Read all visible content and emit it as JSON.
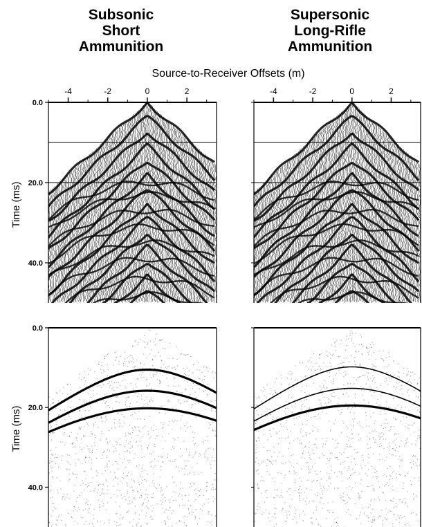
{
  "figure": {
    "titles": [
      [
        "Subsonic",
        "Short",
        "Ammunition"
      ],
      [
        "Supersonic",
        "Long-Rifle",
        "Ammunition"
      ]
    ],
    "offset_axis_label": "Source-to-Receiver Offsets (m)",
    "x_tick_labels": [
      "-4",
      "-2",
      "0",
      "2"
    ],
    "y_tick_labels": [
      "0.0",
      "20.0",
      "40.0"
    ],
    "time_axis_label": "Time (ms)",
    "colors": {
      "ink": "#000000",
      "paper": "#ffffff"
    }
  },
  "chart_data": [
    {
      "type": "scatter",
      "name_hint": "top-left seismogram",
      "xlim": [
        -5,
        3.5
      ],
      "ylim": [
        0,
        50
      ],
      "xticks": [
        -4,
        -2,
        0,
        2
      ],
      "yticks": [
        0,
        20,
        40
      ],
      "horizontal_reference_lines_ms": [
        10,
        20
      ],
      "first_arrival_slope_ms_per_m": 4.5
    },
    {
      "type": "scatter",
      "name_hint": "top-right seismogram",
      "xlim": [
        -5,
        3.5
      ],
      "ylim": [
        0,
        50
      ],
      "xticks": [
        -4,
        -2,
        0,
        2
      ],
      "yticks": [
        0,
        20,
        40
      ],
      "horizontal_reference_lines_ms": [
        10,
        20
      ],
      "first_arrival_slope_ms_per_m": 4.5
    },
    {
      "type": "line",
      "name_hint": "bottom-left hyperbolas",
      "xlim": [
        -5,
        3.5
      ],
      "ylim": [
        0,
        50
      ],
      "yticks": [
        0,
        20,
        40
      ],
      "series": [
        {
          "t0_ms": 10.5,
          "velocity_m_per_ms": 0.28,
          "line_weight": "heavy"
        },
        {
          "t0_ms": 15.8,
          "velocity_m_per_ms": 0.28,
          "line_weight": "heavy"
        },
        {
          "t0_ms": 20.2,
          "velocity_m_per_ms": 0.3,
          "line_weight": "heavy"
        }
      ]
    },
    {
      "type": "line",
      "name_hint": "bottom-right hyperbolas",
      "xlim": [
        -5,
        3.5
      ],
      "ylim": [
        0,
        50
      ],
      "yticks": [
        0,
        20,
        40
      ],
      "series": [
        {
          "t0_ms": 9.8,
          "velocity_m_per_ms": 0.28,
          "line_weight": "thin"
        },
        {
          "t0_ms": 15.2,
          "velocity_m_per_ms": 0.28,
          "line_weight": "thin"
        },
        {
          "t0_ms": 19.5,
          "velocity_m_per_ms": 0.3,
          "line_weight": "heavy"
        }
      ]
    }
  ]
}
